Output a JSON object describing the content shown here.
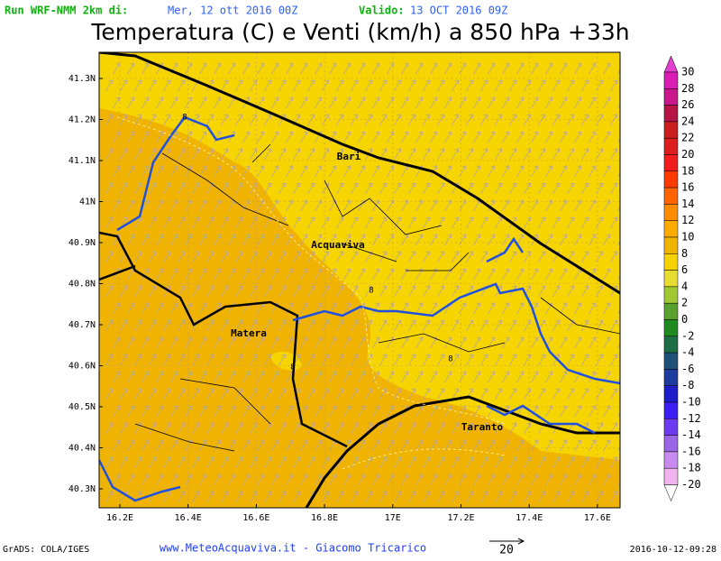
{
  "header": {
    "run_label": "Run WRF-NMM 2km di:",
    "run_date": "Mer, 12 ott 2016 00Z",
    "valid_label": "Valido:",
    "valid_date": "13 OCT 2016 09Z",
    "title": "Temperatura (C) e Venti (km/h) a 850 hPa +33h"
  },
  "map": {
    "lat_labels": [
      "41.3N",
      "41.2N",
      "41.1N",
      "41N",
      "40.9N",
      "40.8N",
      "40.7N",
      "40.6N",
      "40.5N",
      "40.4N",
      "40.3N"
    ],
    "lon_labels": [
      "16.2E",
      "16.4E",
      "16.6E",
      "16.8E",
      "17E",
      "17.2E",
      "17.4E",
      "17.6E"
    ],
    "cities": [
      "Bari",
      "Acquaviva",
      "Matera",
      "Taranto"
    ],
    "contour_labels": [
      "8",
      "8",
      "8",
      "8"
    ]
  },
  "legend": {
    "labels": [
      "30",
      "28",
      "26",
      "24",
      "22",
      "20",
      "18",
      "16",
      "14",
      "12",
      "10",
      "8",
      "6",
      "4",
      "2",
      "0",
      "-2",
      "-4",
      "-6",
      "-8",
      "-10",
      "-12",
      "-14",
      "-16",
      "-18",
      "-20"
    ],
    "colors": [
      "#d81eb4",
      "#c8188c",
      "#b41446",
      "#c81e1e",
      "#dc1e1e",
      "#f01e1e",
      "#ff3c00",
      "#ff6400",
      "#ff8c00",
      "#ffaa00",
      "#f0b400",
      "#f5d200",
      "#e6dc32",
      "#a0c832",
      "#5aa02d",
      "#1e8c1e",
      "#1e6e46",
      "#1e5078",
      "#1e3ca0",
      "#1e1ec8",
      "#3c1ef0",
      "#6e3cf0",
      "#9c64e6",
      "#c88cf0",
      "#f0b4f0"
    ],
    "top_color": "#e040d0"
  },
  "footer": {
    "software": "GrADS: COLA/IGES",
    "credit": "www.MeteoAcquaviva.it  -  Giacomo Tricarico",
    "vector_scale": "20",
    "timestamp": "2016-10-12-09:28"
  }
}
